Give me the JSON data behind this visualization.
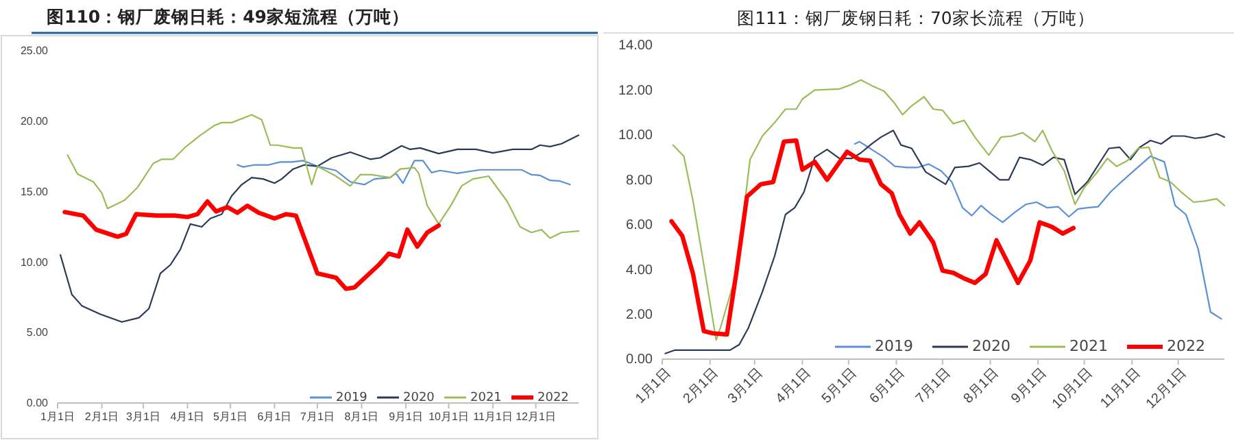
{
  "chart_data": [
    {
      "type": "line",
      "title": "图110：钢厂废钢日耗：49家短流程（万吨）",
      "xlim": [
        "--01-01",
        "--12-31"
      ],
      "xticks": [
        {
          "value": "--01-01",
          "label": "1月1日"
        },
        {
          "value": "--02-01",
          "label": "2月1日"
        },
        {
          "value": "--03-01",
          "label": "3月1日"
        },
        {
          "value": "--04-01",
          "label": "4月1日"
        },
        {
          "value": "--05-01",
          "label": "5月1日"
        },
        {
          "value": "--06-01",
          "label": "6月1日"
        },
        {
          "value": "--07-01",
          "label": "7月1日"
        },
        {
          "value": "--08-01",
          "label": "8月1日"
        },
        {
          "value": "--09-01",
          "label": "9月1日"
        },
        {
          "value": "--10-01",
          "label": "10月1日"
        },
        {
          "value": "--11-01",
          "label": "11月1日"
        },
        {
          "value": "--12-01",
          "label": "12月1日"
        }
      ],
      "ylim": [
        0,
        25
      ],
      "yticks": [
        {
          "value": 0,
          "label": "0.00"
        },
        {
          "value": 5,
          "label": "5.00"
        },
        {
          "value": 10,
          "label": "10.00"
        },
        {
          "value": 15,
          "label": "15.00"
        },
        {
          "value": 20,
          "label": "20.00"
        },
        {
          "value": 25,
          "label": "25.00"
        }
      ],
      "grid": false,
      "legend": "bottom right",
      "line_style": "solid",
      "marker": "none",
      "series": [
        {
          "name": "2019",
          "color": "#5b8fd6",
          "x": [
            "--05-06",
            "--05-10",
            "--05-18",
            "--05-28",
            "--06-05",
            "--06-13",
            "--06-21",
            "--07-01",
            "--07-14",
            "--07-24",
            "--08-03",
            "--08-10",
            "--08-21",
            "--08-25",
            "--08-30",
            "--09-07",
            "--09-13",
            "--09-19",
            "--09-25",
            "--10-07",
            "--10-23",
            "--11-08",
            "--11-21",
            "--11-28",
            "--12-04",
            "--12-11",
            "--12-18",
            "--12-25"
          ],
          "values": [
            16.9,
            16.75,
            16.9,
            16.9,
            17.1,
            17.1,
            17.2,
            16.8,
            16.5,
            15.7,
            15.5,
            15.9,
            16.0,
            16.3,
            15.6,
            17.2,
            17.2,
            16.35,
            16.5,
            16.3,
            16.55,
            16.55,
            16.55,
            16.2,
            16.15,
            15.8,
            15.75,
            15.5
          ]
        },
        {
          "name": "2020",
          "color": "#2b3a55",
          "x": [
            "--01-03",
            "--01-11",
            "--01-18",
            "--01-31",
            "--02-15",
            "--02-27",
            "--03-05",
            "--03-13",
            "--03-20",
            "--03-27",
            "--04-03",
            "--04-11",
            "--04-17",
            "--04-25",
            "--05-02",
            "--05-09",
            "--05-16",
            "--05-24",
            "--06-01",
            "--06-06",
            "--06-14",
            "--06-22",
            "--07-01",
            "--07-11",
            "--07-24",
            "--08-07",
            "--08-14",
            "--08-29",
            "--09-04",
            "--09-11",
            "--09-24",
            "--10-07",
            "--10-20",
            "--11-01",
            "--11-15",
            "--11-28",
            "--12-04",
            "--12-11",
            "--12-19",
            "--12-31"
          ],
          "values": [
            10.5,
            7.7,
            6.9,
            6.3,
            5.75,
            6.05,
            6.7,
            9.2,
            9.8,
            10.9,
            12.7,
            12.5,
            13.1,
            13.4,
            14.7,
            15.5,
            16.0,
            15.9,
            15.6,
            15.9,
            16.6,
            16.9,
            16.8,
            17.4,
            17.8,
            17.3,
            17.4,
            18.25,
            18.0,
            18.1,
            17.7,
            18.0,
            18.0,
            17.75,
            18.0,
            18.0,
            18.3,
            18.2,
            18.4,
            19.0
          ]
        },
        {
          "name": "2021",
          "color": "#9bbb59",
          "x": [
            "--01-08",
            "--01-15",
            "--01-26",
            "--02-01",
            "--02-05",
            "--02-17",
            "--02-26",
            "--03-08",
            "--03-14",
            "--03-22",
            "--03-31",
            "--04-10",
            "--04-20",
            "--04-25",
            "--05-02",
            "--05-16",
            "--05-23",
            "--05-29",
            "--06-03",
            "--06-14",
            "--06-20",
            "--06-27",
            "--07-01",
            "--07-14",
            "--07-24",
            "--07-31",
            "--08-08",
            "--08-21",
            "--08-28",
            "--09-07",
            "--09-10",
            "--09-16",
            "--09-24",
            "--10-03",
            "--10-10",
            "--10-18",
            "--10-29",
            "--11-11",
            "--11-20",
            "--11-28",
            "--12-05",
            "--12-11",
            "--12-19",
            "--12-31"
          ],
          "values": [
            17.6,
            16.25,
            15.7,
            14.9,
            13.8,
            14.4,
            15.3,
            17.0,
            17.3,
            17.3,
            18.2,
            19.0,
            19.7,
            19.9,
            19.9,
            20.45,
            20.1,
            18.3,
            18.3,
            18.1,
            18.1,
            15.5,
            16.8,
            16.1,
            15.4,
            16.2,
            16.2,
            16.0,
            16.6,
            16.7,
            16.3,
            14.0,
            12.7,
            14.1,
            15.4,
            15.9,
            16.1,
            14.3,
            12.5,
            12.1,
            12.3,
            11.7,
            12.1,
            12.2
          ]
        },
        {
          "name": "2022",
          "color": "#ff0000",
          "x": [
            "--01-06",
            "--01-19",
            "--01-28",
            "--02-12",
            "--02-18",
            "--02-25",
            "--03-10",
            "--03-23",
            "--04-01",
            "--04-08",
            "--04-15",
            "--04-21",
            "--04-29",
            "--05-06",
            "--05-13",
            "--05-21",
            "--06-01",
            "--06-09",
            "--06-16",
            "--07-01",
            "--07-14",
            "--07-21",
            "--07-27",
            "--08-13",
            "--08-20",
            "--08-27",
            "--09-02",
            "--09-09",
            "--09-16",
            "--09-24"
          ],
          "values": [
            13.55,
            13.3,
            12.3,
            11.8,
            12.0,
            13.4,
            13.3,
            13.3,
            13.2,
            13.4,
            14.3,
            13.6,
            13.9,
            13.5,
            14.0,
            13.5,
            13.1,
            13.4,
            13.3,
            9.2,
            8.9,
            8.1,
            8.2,
            9.8,
            10.6,
            10.4,
            12.3,
            11.1,
            12.1,
            12.6
          ]
        }
      ]
    },
    {
      "type": "line",
      "title": "图111：钢厂废钢日耗：70家长流程（万吨）",
      "xlim": [
        "--01-01",
        "--12-31"
      ],
      "xticks": [
        {
          "value": "--01-01",
          "label": "1月1日"
        },
        {
          "value": "--02-01",
          "label": "2月1日"
        },
        {
          "value": "--03-01",
          "label": "3月1日"
        },
        {
          "value": "--04-01",
          "label": "4月1日"
        },
        {
          "value": "--05-01",
          "label": "5月1日"
        },
        {
          "value": "--06-01",
          "label": "6月1日"
        },
        {
          "value": "--07-01",
          "label": "7月1日"
        },
        {
          "value": "--08-01",
          "label": "8月1日"
        },
        {
          "value": "--09-01",
          "label": "9月1日"
        },
        {
          "value": "--10-01",
          "label": "10月1日"
        },
        {
          "value": "--11-01",
          "label": "11月1日"
        },
        {
          "value": "--12-01",
          "label": "12月1日"
        }
      ],
      "ylim": [
        0,
        14
      ],
      "yticks": [
        {
          "value": 0,
          "label": "0.00"
        },
        {
          "value": 2,
          "label": "2.00"
        },
        {
          "value": 4,
          "label": "4.00"
        },
        {
          "value": 6,
          "label": "6.00"
        },
        {
          "value": 8,
          "label": "8.00"
        },
        {
          "value": 10,
          "label": "10.00"
        },
        {
          "value": 12,
          "label": "12.00"
        },
        {
          "value": 14,
          "label": "14.00"
        }
      ],
      "grid": false,
      "legend": "bottom right",
      "line_style": "solid",
      "marker": "none",
      "series": [
        {
          "name": "2019",
          "color": "#5b8fd6",
          "x": [
            "--05-05",
            "--05-08",
            "--05-16",
            "--05-24",
            "--05-31",
            "--06-08",
            "--06-15",
            "--06-22",
            "--06-30",
            "--07-07",
            "--07-14",
            "--07-20",
            "--07-26",
            "--08-01",
            "--08-09",
            "--08-17",
            "--08-24",
            "--08-31",
            "--09-07",
            "--09-14",
            "--09-21",
            "--09-27",
            "--10-03",
            "--10-10",
            "--10-18",
            "--10-25",
            "--11-03",
            "--11-13",
            "--11-22",
            "--11-29",
            "--12-06",
            "--12-14",
            "--12-22",
            "--12-29"
          ],
          "values": [
            9.6,
            9.7,
            9.35,
            9.0,
            8.6,
            8.55,
            8.55,
            8.7,
            8.4,
            7.9,
            6.75,
            6.4,
            6.85,
            6.5,
            6.1,
            6.55,
            6.9,
            7.0,
            6.75,
            6.8,
            6.35,
            6.7,
            6.75,
            6.8,
            7.45,
            7.9,
            8.45,
            9.05,
            8.8,
            6.85,
            6.45,
            4.9,
            2.1,
            1.8
          ]
        },
        {
          "name": "2020",
          "color": "#2b3a55",
          "x": [
            "--01-03",
            "--01-09",
            "--02-14",
            "--02-20",
            "--02-26",
            "--03-06",
            "--03-14",
            "--03-21",
            "--03-27",
            "--04-02",
            "--04-09",
            "--04-17",
            "--04-25",
            "--05-03",
            "--05-09",
            "--05-16",
            "--05-22",
            "--05-30",
            "--06-04",
            "--06-11",
            "--06-20",
            "--06-27",
            "--07-03",
            "--07-09",
            "--07-18",
            "--07-25",
            "--08-01",
            "--08-07",
            "--08-13",
            "--08-20",
            "--08-27",
            "--09-04",
            "--09-11",
            "--09-18",
            "--09-25",
            "--10-03",
            "--10-10",
            "--10-17",
            "--10-24",
            "--10-31",
            "--11-06",
            "--11-13",
            "--11-20",
            "--11-27",
            "--12-05",
            "--12-12",
            "--12-18",
            "--12-26",
            "--12-31"
          ],
          "values": [
            0.25,
            0.4,
            0.4,
            0.65,
            1.4,
            3.0,
            4.6,
            6.45,
            6.75,
            7.45,
            9.0,
            9.35,
            8.95,
            8.95,
            9.2,
            9.6,
            9.9,
            10.2,
            9.55,
            9.4,
            8.35,
            8.05,
            7.8,
            8.55,
            8.6,
            8.75,
            8.35,
            8.0,
            8.0,
            9.0,
            8.9,
            8.65,
            9.0,
            8.9,
            7.35,
            7.9,
            8.65,
            9.4,
            9.45,
            8.9,
            9.45,
            9.75,
            9.6,
            9.95,
            9.95,
            9.85,
            9.9,
            10.05,
            9.9
          ]
        },
        {
          "name": "2021",
          "color": "#9bbb59",
          "x": [
            "--01-08",
            "--01-15",
            "--01-21",
            "--01-28",
            "--02-05",
            "--02-08",
            "--02-18",
            "--02-27",
            "--03-06",
            "--03-14",
            "--03-21",
            "--03-28",
            "--04-01",
            "--04-09",
            "--04-25",
            "--05-01",
            "--05-09",
            "--05-16",
            "--05-24",
            "--05-31",
            "--06-05",
            "--06-11",
            "--06-19",
            "--06-25",
            "--07-01",
            "--07-08",
            "--07-15",
            "--07-22",
            "--07-31",
            "--08-08",
            "--08-15",
            "--08-22",
            "--08-30",
            "--09-04",
            "--09-10",
            "--09-18",
            "--09-25",
            "--10-01",
            "--10-09",
            "--10-16",
            "--10-22",
            "--10-29",
            "--11-05",
            "--11-12",
            "--11-19",
            "--11-26",
            "--12-03",
            "--12-11",
            "--12-18",
            "--12-26",
            "--12-31"
          ],
          "values": [
            9.55,
            9.05,
            7.05,
            4.2,
            0.85,
            1.45,
            3.8,
            8.9,
            9.95,
            10.55,
            11.15,
            11.15,
            11.6,
            12.0,
            12.05,
            12.2,
            12.45,
            12.2,
            11.95,
            11.4,
            10.9,
            11.3,
            11.7,
            11.15,
            11.1,
            10.5,
            10.65,
            9.9,
            9.1,
            9.9,
            9.95,
            10.1,
            9.7,
            10.2,
            9.3,
            8.4,
            6.9,
            7.65,
            8.3,
            8.95,
            8.6,
            8.85,
            9.4,
            9.45,
            8.1,
            7.9,
            7.45,
            7.0,
            7.05,
            7.15,
            6.85
          ]
        },
        {
          "name": "2022",
          "color": "#ff0000",
          "x": [
            "--01-07",
            "--01-14",
            "--01-21",
            "--01-28",
            "--02-03",
            "--02-12",
            "--02-18",
            "--02-25",
            "--03-05",
            "--03-13",
            "--03-20",
            "--03-28",
            "--04-01",
            "--04-09",
            "--04-17",
            "--04-30",
            "--05-08",
            "--05-15",
            "--05-22",
            "--05-29",
            "--06-03",
            "--06-10",
            "--06-16",
            "--06-25",
            "--07-01",
            "--07-08",
            "--07-15",
            "--07-22",
            "--07-29",
            "--08-05",
            "--08-12",
            "--08-19",
            "--08-27",
            "--09-02",
            "--09-10",
            "--09-17",
            "--09-24"
          ],
          "values": [
            6.15,
            5.5,
            3.8,
            1.25,
            1.15,
            1.1,
            3.8,
            7.25,
            7.8,
            7.9,
            9.7,
            9.75,
            8.45,
            8.8,
            8.0,
            9.25,
            8.9,
            8.85,
            7.8,
            7.4,
            6.45,
            5.6,
            6.1,
            5.2,
            3.95,
            3.85,
            3.6,
            3.4,
            3.8,
            5.3,
            4.35,
            3.4,
            4.4,
            6.1,
            5.9,
            5.6,
            5.85
          ]
        }
      ]
    }
  ]
}
